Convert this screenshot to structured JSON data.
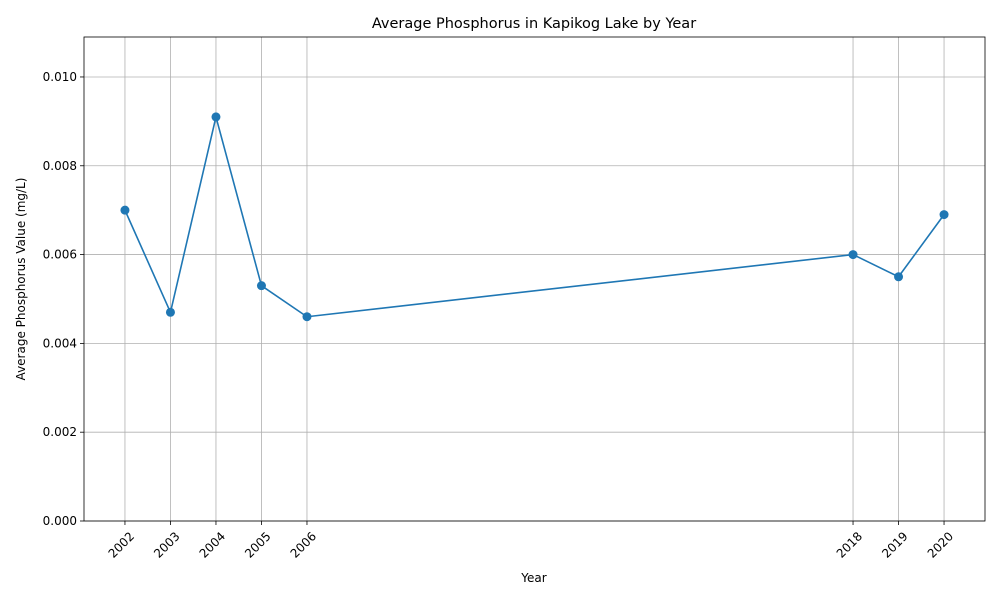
{
  "chart_data": {
    "type": "line",
    "title": "Average Phosphorus in Kapikog Lake by Year",
    "xlabel": "Year",
    "ylabel": "Average Phosphorus Value (mg/L)",
    "x": [
      2002,
      2003,
      2004,
      2005,
      2006,
      2018,
      2019,
      2020
    ],
    "x_tick_labels": [
      "2002",
      "2003",
      "2004",
      "2005",
      "2006",
      "2018",
      "2019",
      "2020"
    ],
    "series": [
      {
        "values": [
          0.007,
          0.0047,
          0.0091,
          0.0053,
          0.0046,
          0.006,
          0.0055,
          0.0069
        ]
      }
    ],
    "xlim": [
      2001.1,
      2020.9
    ],
    "ylim": [
      0,
      0.0109
    ],
    "y_ticks": [
      0,
      0.002,
      0.004,
      0.006,
      0.008,
      0.01
    ],
    "y_tick_labels": [
      "0.000",
      "0.002",
      "0.004",
      "0.006",
      "0.008",
      "0.010"
    ],
    "grid": true,
    "marker": "circle",
    "colors": {
      "line": "#1f77b4",
      "grid": "#b0b0b0",
      "axis": "#000000"
    }
  }
}
